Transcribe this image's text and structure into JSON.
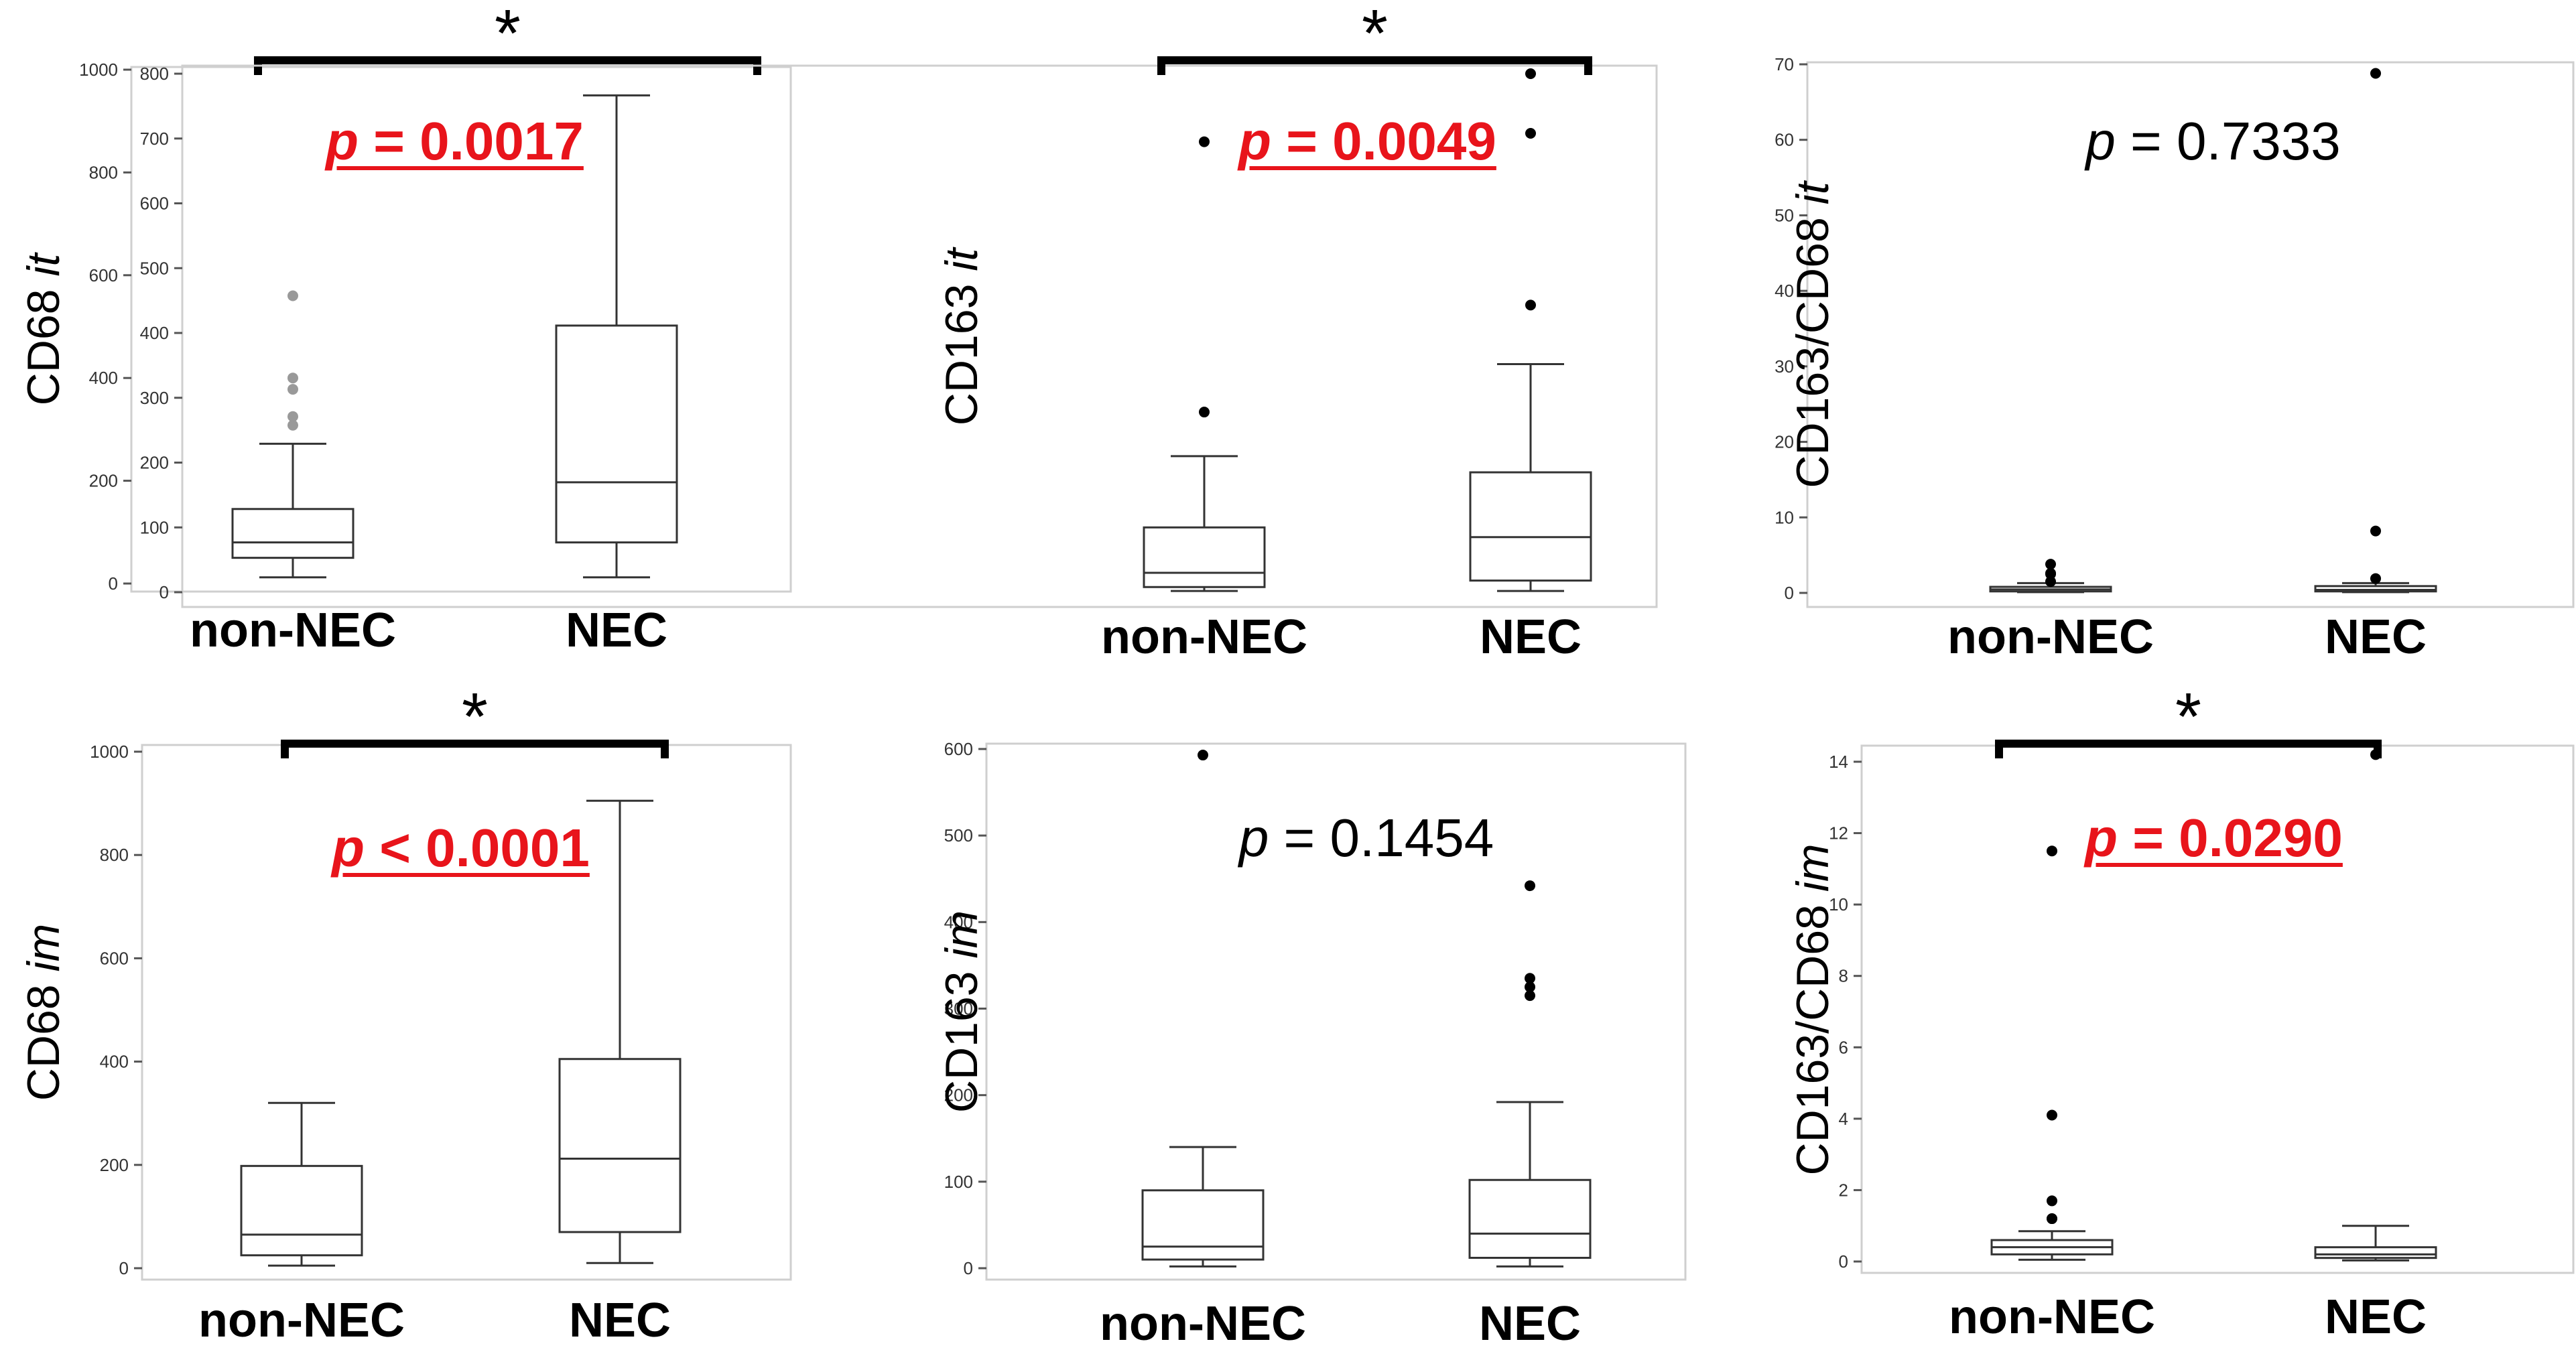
{
  "chart_data": [
    {
      "type": "box",
      "ylabel": "CD68",
      "ylabel_italic": "it",
      "categories": [
        "non-NEC",
        "NEC"
      ],
      "ylim": [
        0,
        1000
      ],
      "yticks": [
        "0",
        "200",
        "400",
        "600",
        "800",
        "1000"
      ],
      "ytick_values": [
        0,
        200,
        400,
        600,
        800,
        1000
      ],
      "p_letter": "p",
      "p_rest": " = 0.0017",
      "significant": true,
      "star": "*",
      "outlier_color": "#999999",
      "boxes": [
        {
          "whisker_low": 12,
          "q1": 50,
          "median": 80,
          "q3": 145,
          "whisker_high": 272,
          "outliers": [
            308,
            325,
            378,
            400,
            560
          ]
        },
        {
          "whisker_low": 12,
          "q1": 80,
          "median": 197,
          "q3": 502,
          "whisker_high": 950,
          "outliers": []
        }
      ]
    },
    {
      "type": "box",
      "ylabel": "CD163",
      "ylabel_italic": "it",
      "categories": [
        "non-NEC",
        "NEC"
      ],
      "ylim": [
        0,
        800
      ],
      "yticks": [
        "0",
        "100",
        "200",
        "300",
        "400",
        "500",
        "600",
        "700",
        "800"
      ],
      "ytick_values": [
        0,
        100,
        200,
        300,
        400,
        500,
        600,
        700,
        800
      ],
      "p_letter": "p",
      "p_rest": " = 0.0049",
      "significant": true,
      "star": "*",
      "outlier_color": "#000000",
      "boxes": [
        {
          "whisker_low": 2,
          "q1": 8,
          "median": 30,
          "q3": 100,
          "whisker_high": 210,
          "outliers": [
            278,
            695
          ]
        },
        {
          "whisker_low": 2,
          "q1": 18,
          "median": 85,
          "q3": 185,
          "whisker_high": 352,
          "outliers": [
            443,
            708,
            800
          ]
        }
      ]
    },
    {
      "type": "box",
      "ylabel": "CD163/CD68",
      "ylabel_italic": "it",
      "categories": [
        "non-NEC",
        "NEC"
      ],
      "ylim": [
        0,
        70
      ],
      "yticks": [
        "0",
        "10",
        "20",
        "30",
        "40",
        "50",
        "60",
        "70"
      ],
      "ytick_values": [
        0,
        10,
        20,
        30,
        40,
        50,
        60,
        70
      ],
      "p_letter": "p",
      "p_rest": " = 0.7333",
      "significant": false,
      "star": "",
      "outlier_color": "#000000",
      "boxes": [
        {
          "whisker_low": 0.1,
          "q1": 0.2,
          "median": 0.45,
          "q3": 0.8,
          "whisker_high": 1.3,
          "outliers": [
            1.5,
            2.5,
            2.6,
            3.8
          ]
        },
        {
          "whisker_low": 0.1,
          "q1": 0.2,
          "median": 0.4,
          "q3": 0.9,
          "whisker_high": 1.3,
          "outliers": [
            1.9,
            8.2,
            68.8
          ]
        }
      ]
    },
    {
      "type": "box",
      "ylabel": "CD68",
      "ylabel_italic": "im",
      "categories": [
        "non-NEC",
        "NEC"
      ],
      "ylim": [
        0,
        1000
      ],
      "yticks": [
        "0",
        "200",
        "400",
        "600",
        "800",
        "1000"
      ],
      "ytick_values": [
        0,
        200,
        400,
        600,
        800,
        1000
      ],
      "p_letter": "p",
      "p_rest": " < 0.0001",
      "significant": true,
      "star": "*",
      "outlier_color": "#999999",
      "boxes": [
        {
          "whisker_low": 5,
          "q1": 25,
          "median": 65,
          "q3": 198,
          "whisker_high": 320,
          "outliers": []
        },
        {
          "whisker_low": 10,
          "q1": 70,
          "median": 212,
          "q3": 405,
          "whisker_high": 905,
          "outliers": []
        }
      ]
    },
    {
      "type": "box",
      "ylabel": "CD163",
      "ylabel_italic": "im",
      "categories": [
        "non-NEC",
        "NEC"
      ],
      "ylim": [
        0,
        600
      ],
      "yticks": [
        "0",
        "100",
        "200",
        "300",
        "400",
        "500",
        "600"
      ],
      "ytick_values": [
        0,
        100,
        200,
        300,
        400,
        500,
        600
      ],
      "p_letter": "p",
      "p_rest": " = 0.1454",
      "significant": false,
      "star": "",
      "outlier_color": "#000000",
      "boxes": [
        {
          "whisker_low": 2,
          "q1": 10,
          "median": 25,
          "q3": 90,
          "whisker_high": 140,
          "outliers": [
            593
          ]
        },
        {
          "whisker_low": 2,
          "q1": 12,
          "median": 40,
          "q3": 102,
          "whisker_high": 192,
          "outliers": [
            315,
            325,
            335,
            442
          ]
        }
      ]
    },
    {
      "type": "box",
      "ylabel": "CD163/CD68",
      "ylabel_italic": "im",
      "categories": [
        "non-NEC",
        "NEC"
      ],
      "ylim": [
        0,
        14
      ],
      "yticks": [
        "0",
        "2",
        "4",
        "6",
        "8",
        "10",
        "12",
        "14"
      ],
      "ytick_values": [
        0,
        2,
        4,
        6,
        8,
        10,
        12,
        14
      ],
      "p_letter": "p",
      "p_rest": " = 0.0290",
      "significant": true,
      "star": "*",
      "outlier_color": "#000000",
      "boxes": [
        {
          "whisker_low": 0.05,
          "q1": 0.2,
          "median": 0.4,
          "q3": 0.6,
          "whisker_high": 0.85,
          "outliers": [
            1.2,
            1.2,
            1.7,
            4.1,
            11.5
          ]
        },
        {
          "whisker_low": 0.03,
          "q1": 0.1,
          "median": 0.2,
          "q3": 0.4,
          "whisker_high": 1.0,
          "outliers": [
            14.2
          ]
        }
      ]
    }
  ]
}
